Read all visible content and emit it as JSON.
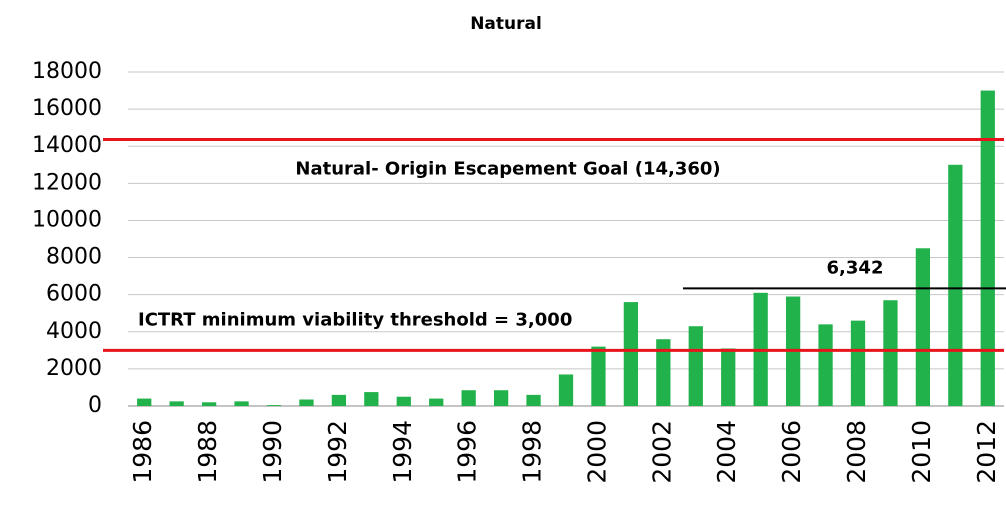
{
  "chart_data": {
    "type": "bar",
    "title": "Natural",
    "categories": [
      "1986",
      null,
      "1988",
      null,
      "1990",
      null,
      "1992",
      null,
      "1994",
      null,
      "1996",
      null,
      "1998",
      null,
      "2000",
      null,
      "2002",
      null,
      "2004",
      null,
      "2006",
      null,
      "2008",
      null,
      "2010",
      null,
      "2012"
    ],
    "values": [
      400,
      250,
      200,
      250,
      50,
      350,
      600,
      750,
      500,
      400,
      850,
      850,
      600,
      1700,
      3200,
      5600,
      3600,
      4300,
      3100,
      6100,
      5900,
      4400,
      4600,
      5700,
      8500,
      13000,
      17000
    ],
    "color": "#22b24c",
    "ylim": [
      0,
      18000
    ],
    "yticks": [
      0,
      2000,
      4000,
      6000,
      8000,
      10000,
      12000,
      14000,
      16000,
      18000
    ],
    "grid": true,
    "reference_lines": [
      {
        "value": 14360,
        "label": "Natural- Origin Escapement Goal (14,360)",
        "color": "#e8141c"
      },
      {
        "value": 3000,
        "label": "ICTRT minimum viability threshold = 3,000",
        "color": "#e8141c"
      },
      {
        "value": 6342,
        "label": "6,342",
        "color": "#000000"
      }
    ]
  }
}
